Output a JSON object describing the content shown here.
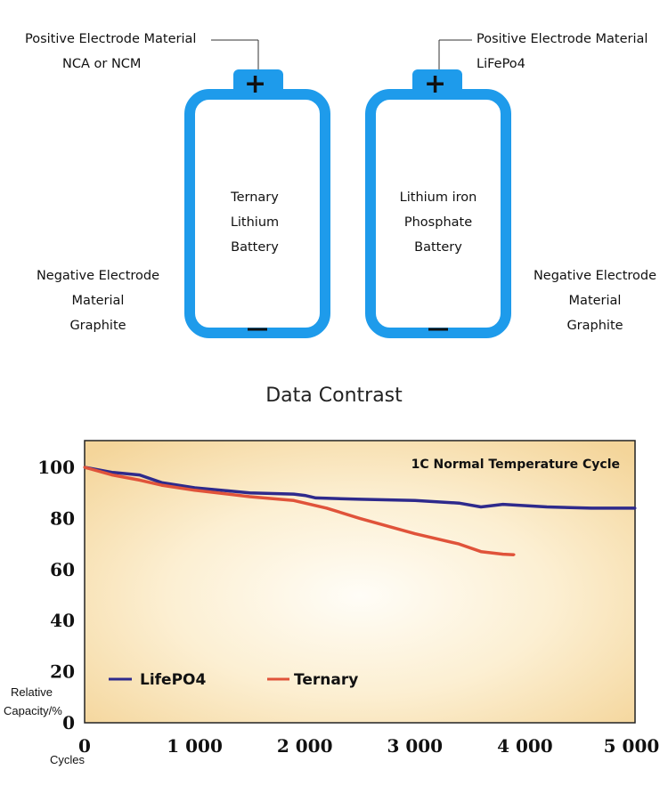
{
  "diagram": {
    "left": {
      "positive_label": "Positive Electrode Material",
      "positive_material": "NCA or NCM",
      "body_lines": [
        "Ternary",
        "Lithium",
        "Battery"
      ],
      "negative_lines": [
        "Negative Electrode",
        "Material",
        "Graphite"
      ],
      "plus": "+",
      "minus": "−"
    },
    "right": {
      "positive_label": "Positive Electrode Material",
      "positive_material": "LiFePo4",
      "body_lines": [
        "Lithium iron",
        "Phosphate",
        "Battery"
      ],
      "negative_lines": [
        "Negative Electrode",
        "Material",
        "Graphite"
      ],
      "plus": "+",
      "minus": "−"
    },
    "battery_color": "#1E9BEB"
  },
  "section_title": "Data Contrast",
  "chart_data": {
    "type": "line",
    "title": "1C Normal Temperature Cycle",
    "xlabel": "Cycles",
    "ylabel": "Relative Capacity/%",
    "xlim": [
      0,
      5000
    ],
    "ylim": [
      0,
      100
    ],
    "xticks": [
      "0",
      "1 000",
      "2 000",
      "3 000",
      "4 000",
      "5 000"
    ],
    "yticks": [
      "0",
      "20",
      "40",
      "60",
      "80",
      "100"
    ],
    "grid": false,
    "legend_placement": "bottom-left",
    "series": [
      {
        "name": "LifePO4",
        "color": "#2E2A8C",
        "x": [
          0,
          250,
          500,
          700,
          1000,
          1500,
          1900,
          2000,
          2100,
          2500,
          3000,
          3400,
          3600,
          3800,
          4200,
          4600,
          5000
        ],
        "y": [
          100,
          98,
          97,
          94,
          92,
          90,
          89.5,
          89,
          88,
          87.5,
          87,
          86,
          84.5,
          85.5,
          84.5,
          84,
          84
        ]
      },
      {
        "name": "Ternary",
        "color": "#E0533A",
        "x": [
          0,
          250,
          500,
          700,
          1000,
          1500,
          1900,
          2000,
          2200,
          2500,
          3000,
          3400,
          3600,
          3800,
          3900
        ],
        "y": [
          100,
          97,
          95,
          93,
          91,
          88.5,
          87,
          86,
          84,
          80,
          74,
          70,
          67,
          66,
          65.8
        ]
      }
    ]
  }
}
